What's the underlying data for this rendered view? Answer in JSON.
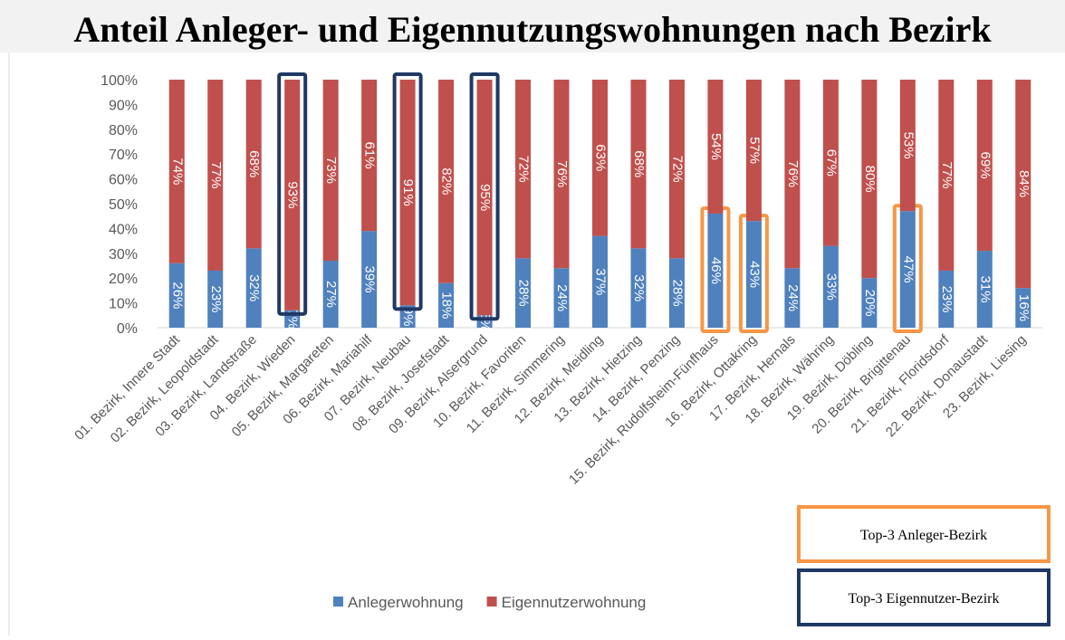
{
  "chart_data": {
    "type": "stacked_bar",
    "title": "Anteil Anleger- und Eigennutzungswohnungen nach Bezirk",
    "categories": [
      "01. Bezirk, Innere Stadt",
      "02. Bezirk, Leopoldstadt",
      "03. Bezirk, Landstraße",
      "04. Bezirk, Wieden",
      "05. Bezirk, Margareten",
      "06. Bezirk, Mariahilf",
      "07. Bezirk, Neubau",
      "08. Bezirk, Josefstadt",
      "09. Bezirk, Alsergrund",
      "10. Bezirk, Favoriten",
      "11. Bezirk, Simmering",
      "12. Bezirk, Meidling",
      "13. Bezirk, Hietzing",
      "14. Bezirk, Penzing",
      "15. Bezirk, Rudolfsheim-Fünfhaus",
      "16. Bezirk, Ottakring",
      "17. Bezirk, Hernals",
      "18. Bezirk, Währing",
      "19. Bezirk, Döbling",
      "20. Bezirk, Brigittenau",
      "21. Bezirk, Floridsdorf",
      "22. Bezirk, Donaustadt",
      "23. Bezirk, Liesing"
    ],
    "series": [
      {
        "name": "Anlegerwohnung",
        "color": "#4f81bd",
        "values": [
          26,
          23,
          32,
          7,
          27,
          39,
          9,
          18,
          5,
          28,
          24,
          37,
          32,
          28,
          46,
          43,
          24,
          33,
          20,
          47,
          23,
          31,
          16
        ],
        "value_labels": [
          "26%",
          "23%",
          "32%",
          "7%",
          "27%",
          "39%",
          "9%",
          "18%",
          "5%",
          "28%",
          "24%",
          "37%",
          "32%",
          "28%",
          "46%",
          "43%",
          "24%",
          "33%",
          "20%",
          "47%",
          "23%",
          "31%",
          "16%"
        ],
        "highlight": {
          "label": "Top-3 Anleger-Bezirk",
          "color": "#f79646",
          "categories": [
            "15. Bezirk, Rudolfsheim-Fünfhaus",
            "16. Bezirk, Ottakring",
            "20. Bezirk, Brigittenau"
          ]
        }
      },
      {
        "name": "Eigennutzerwohnung",
        "color": "#c0504d",
        "values": [
          74,
          77,
          68,
          93,
          73,
          61,
          91,
          82,
          95,
          72,
          76,
          63,
          68,
          72,
          54,
          57,
          76,
          67,
          80,
          53,
          77,
          69,
          84
        ],
        "value_labels": [
          "74%",
          "77%",
          "68%",
          "93%",
          "73%",
          "61%",
          "91%",
          "82%",
          "95%",
          "72%",
          "76%",
          "63%",
          "68%",
          "72%",
          "54%",
          "57%",
          "76%",
          "67%",
          "80%",
          "53%",
          "77%",
          "69%",
          "84%"
        ],
        "highlight": {
          "label": "Top-3 Eigennutzer-Bezirk",
          "color": "#1f3864",
          "categories": [
            "04. Bezirk, Wieden",
            "07. Bezirk, Neubau",
            "09. Bezirk, Alsergrund"
          ]
        }
      }
    ],
    "ylim": [
      0,
      100
    ],
    "yticks": [
      {
        "value": 0,
        "label": "0%"
      },
      {
        "value": 10,
        "label": "10%"
      },
      {
        "value": 20,
        "label": "20%"
      },
      {
        "value": 30,
        "label": "30%"
      },
      {
        "value": 40,
        "label": "40%"
      },
      {
        "value": 50,
        "label": "50%"
      },
      {
        "value": 60,
        "label": "60%"
      },
      {
        "value": 70,
        "label": "70%"
      },
      {
        "value": 80,
        "label": "80%"
      },
      {
        "value": 90,
        "label": "90%"
      },
      {
        "value": 100,
        "label": "100%"
      }
    ],
    "grid": false
  }
}
